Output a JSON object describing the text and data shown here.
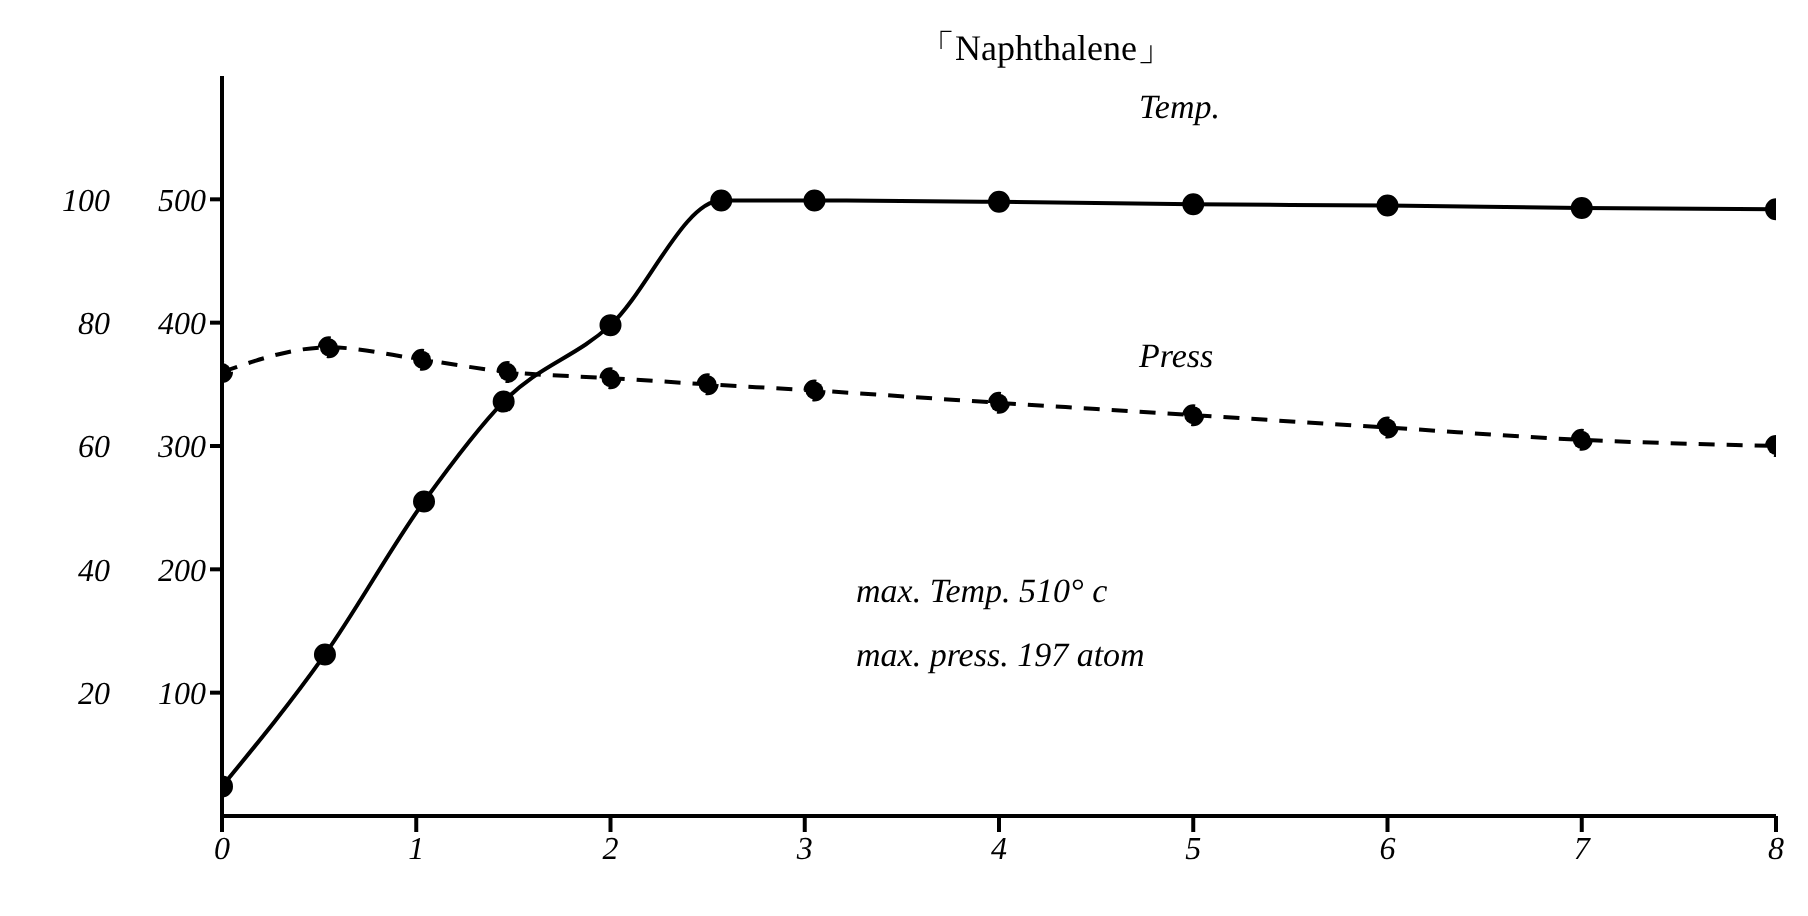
{
  "chart_data": {
    "type": "line",
    "title": "「Naphthalene」",
    "xlim": [
      0,
      8
    ],
    "xticks": [
      0,
      1,
      2,
      3,
      4,
      5,
      6,
      7,
      8
    ],
    "ylim": [
      0,
      600
    ],
    "yticks": [
      100,
      200,
      300,
      400,
      500
    ],
    "y2lim": [
      0,
      120
    ],
    "y2ticks": [
      20,
      40,
      60,
      80,
      100
    ],
    "marker": "circle",
    "series": [
      {
        "name": "Temp.",
        "color": "#000000",
        "line_style": "solid",
        "x": [
          0,
          0.53,
          1.04,
          1.45,
          2.0,
          2.57,
          3.05,
          4,
          5,
          6,
          7,
          8
        ],
        "values": [
          24,
          131,
          255,
          336,
          398,
          499,
          499,
          498,
          496,
          495,
          493,
          492
        ]
      },
      {
        "name": "Press",
        "color": "#000000",
        "line_style": "dashed",
        "axis": "y2",
        "x": [
          0,
          0.55,
          1.03,
          1.47,
          2.0,
          2.5,
          3.05,
          4,
          5,
          6,
          7,
          8
        ],
        "values": [
          72,
          76,
          74,
          72,
          71,
          70,
          69,
          67,
          65,
          63,
          61,
          60
        ]
      }
    ],
    "annotations": [
      "max. Temp. 510° c",
      "max. press. 197 atom"
    ]
  }
}
